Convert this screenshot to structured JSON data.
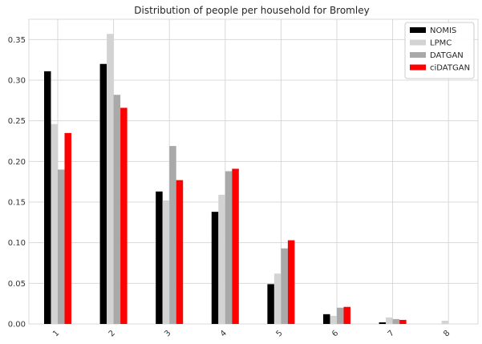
{
  "chart_data": {
    "type": "bar",
    "title": "Distribution of people per household for Bromley",
    "xlabel": "",
    "ylabel": "",
    "categories": [
      "1",
      "2",
      "3",
      "4",
      "5",
      "6",
      "7",
      "8"
    ],
    "ylim": [
      0,
      0.375
    ],
    "yticks": [
      "0.00",
      "0.05",
      "0.10",
      "0.15",
      "0.20",
      "0.25",
      "0.30",
      "0.35"
    ],
    "grid": true,
    "legend_position": "top-right",
    "series": [
      {
        "name": "NOMIS",
        "color": "#000000",
        "values": [
          0.311,
          0.32,
          0.163,
          0.138,
          0.049,
          0.012,
          0.002,
          0.0
        ]
      },
      {
        "name": "LPMC",
        "color": "#d3d3d3",
        "values": [
          0.246,
          0.357,
          0.152,
          0.159,
          0.062,
          0.01,
          0.008,
          0.004
        ]
      },
      {
        "name": "DATGAN",
        "color": "#a9a9a9",
        "values": [
          0.19,
          0.282,
          0.219,
          0.188,
          0.093,
          0.02,
          0.006,
          0.0
        ]
      },
      {
        "name": "ciDATGAN",
        "color": "#ff0000",
        "values": [
          0.235,
          0.266,
          0.177,
          0.191,
          0.103,
          0.021,
          0.005,
          0.0
        ]
      }
    ]
  }
}
